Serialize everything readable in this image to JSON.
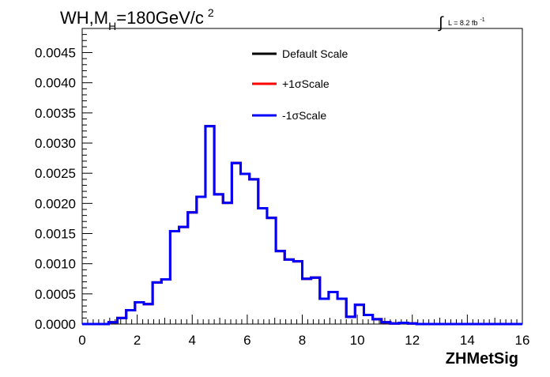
{
  "chart_data": {
    "type": "line",
    "subtype": "step-histogram",
    "title": {
      "prefix": "WH,M",
      "subscript": "H",
      "suffix": "=180GeV/c",
      "superscript": "2"
    },
    "lumi": {
      "integral": "∫",
      "text": "L = 8.2 fb",
      "superscript": "-1"
    },
    "xlabel": "ZHMetSig",
    "ylabel": "",
    "xlim": [
      0,
      16
    ],
    "ylim": [
      0,
      0.0049
    ],
    "x_ticks": [
      {
        "value": 0,
        "label": "0"
      },
      {
        "value": 2,
        "label": "2"
      },
      {
        "value": 4,
        "label": "4"
      },
      {
        "value": 6,
        "label": "6"
      },
      {
        "value": 8,
        "label": "8"
      },
      {
        "value": 10,
        "label": "10"
      },
      {
        "value": 12,
        "label": "12"
      },
      {
        "value": 14,
        "label": "14"
      },
      {
        "value": 16,
        "label": "16"
      }
    ],
    "y_ticks": [
      {
        "value": 0,
        "label": "0.0000"
      },
      {
        "value": 0.0005,
        "label": "0.0005"
      },
      {
        "value": 0.001,
        "label": "0.0010"
      },
      {
        "value": 0.0015,
        "label": "0.0015"
      },
      {
        "value": 0.002,
        "label": "0.0020"
      },
      {
        "value": 0.0025,
        "label": "0.0025"
      },
      {
        "value": 0.003,
        "label": "0.0030"
      },
      {
        "value": 0.0035,
        "label": "0.0035"
      },
      {
        "value": 0.004,
        "label": "0.0040"
      },
      {
        "value": 0.0045,
        "label": "0.0045"
      }
    ],
    "grid": false,
    "legend_position": "top-center",
    "bin_width": 0.32,
    "bin_edges_start": 0,
    "values": [
      0,
      0,
      0,
      3e-05,
      0.0001,
      0.00023,
      0.00036,
      0.00033,
      0.00069,
      0.00074,
      0.00154,
      0.00161,
      0.00185,
      0.00211,
      0.00328,
      0.00215,
      0.00201,
      0.00267,
      0.00249,
      0.0024,
      0.00192,
      0.00176,
      0.00121,
      0.00107,
      0.00104,
      0.00075,
      0.00077,
      0.00042,
      0.00053,
      0.00042,
      0.00012,
      0.00032,
      0.00015,
      8e-05,
      3e-05,
      1e-05,
      2e-05,
      1e-05,
      0,
      0,
      0,
      0,
      0,
      0,
      0,
      0,
      0,
      0,
      0,
      0
    ],
    "series": [
      {
        "name": "Default Scale",
        "color": "#000000",
        "same_as": "values"
      },
      {
        "name": "+1σScale",
        "color": "#ff0000",
        "same_as": "values"
      },
      {
        "name": "-1σScale",
        "color": "#0000ff",
        "same_as": "values"
      }
    ]
  }
}
